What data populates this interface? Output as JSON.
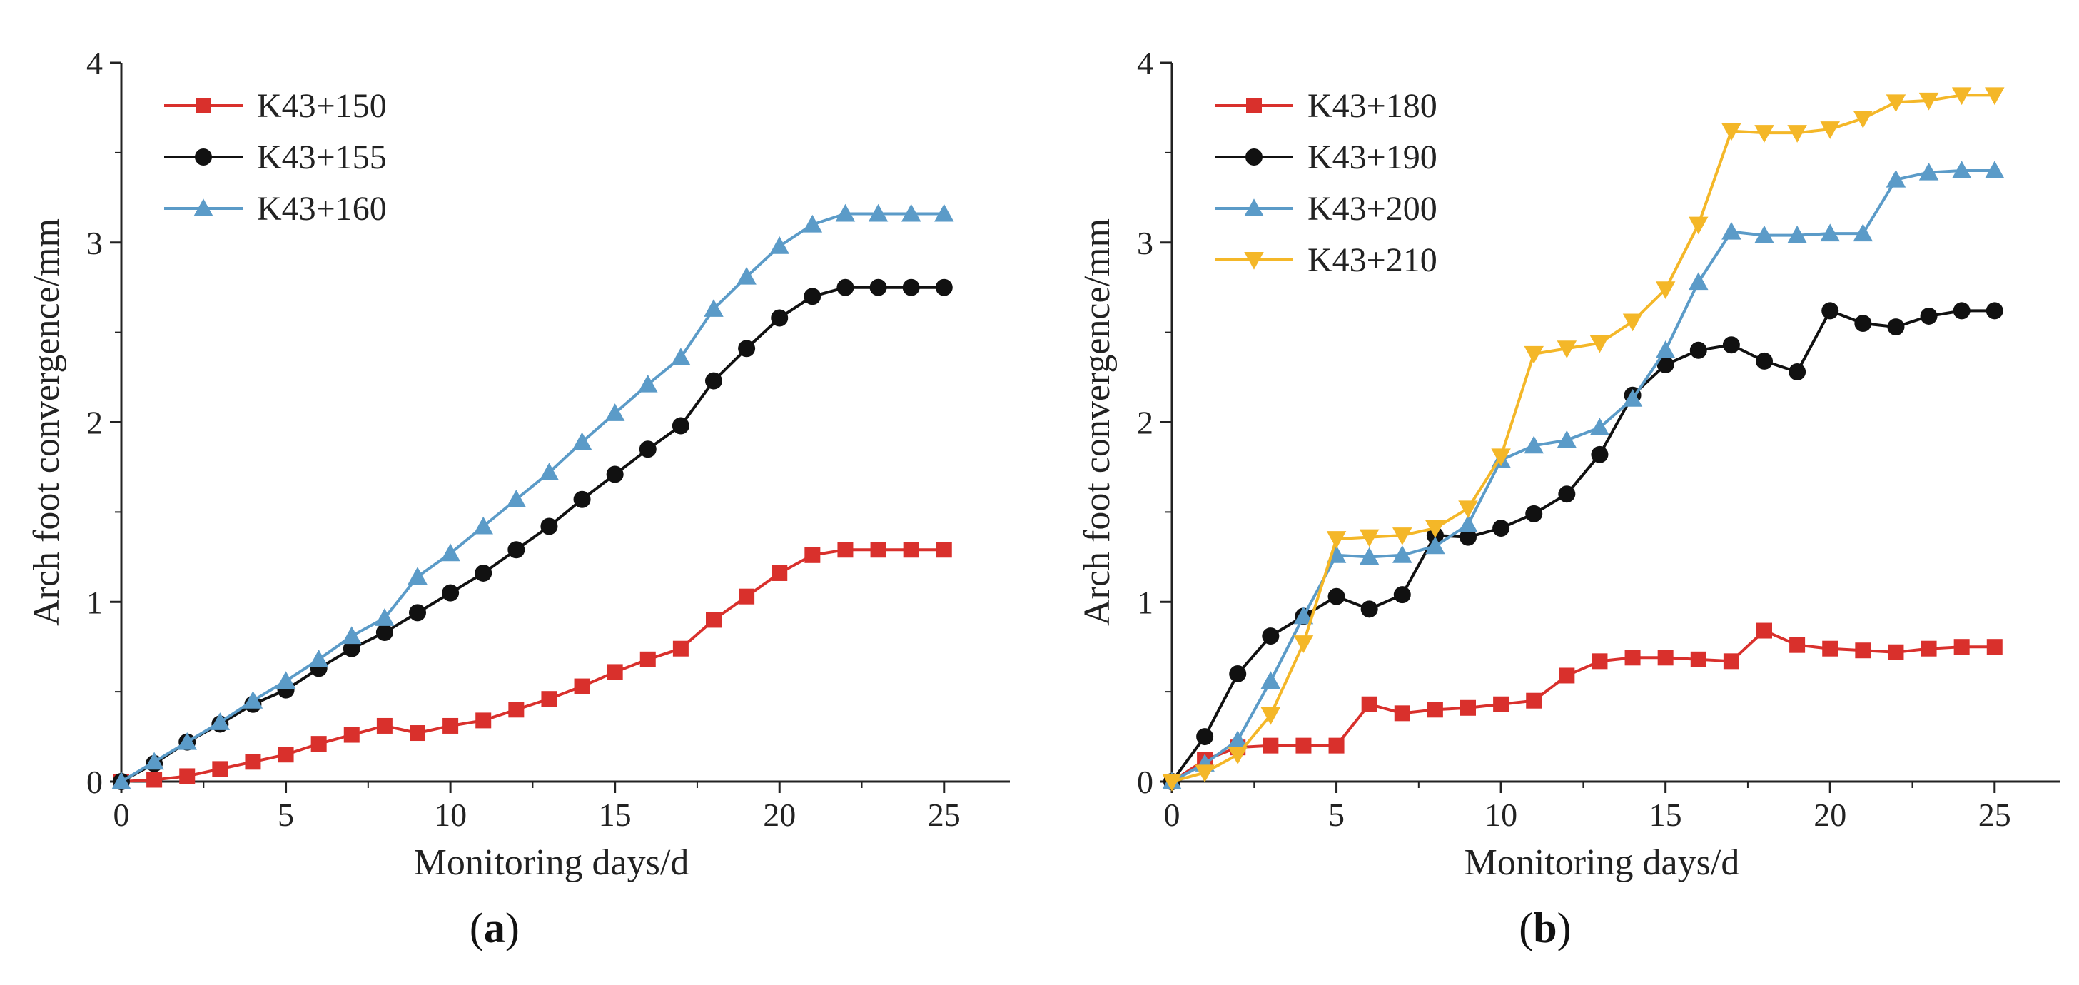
{
  "figure": {
    "panels": [
      "a",
      "b"
    ]
  },
  "chart_data": [
    {
      "type": "line",
      "panel_label": "a",
      "xlabel": "Monitoring days/d",
      "ylabel": "Arch foot convergence/mm",
      "xlim": [
        0,
        27
      ],
      "ylim": [
        0,
        4
      ],
      "xticks": [
        0,
        5,
        10,
        15,
        20,
        25
      ],
      "yticks": [
        0,
        1,
        2,
        3,
        4
      ],
      "legend_position": "top-left",
      "x": [
        0,
        1,
        2,
        3,
        4,
        5,
        6,
        7,
        8,
        9,
        10,
        11,
        12,
        13,
        14,
        15,
        16,
        17,
        18,
        19,
        20,
        21,
        22,
        23,
        24,
        25
      ],
      "series": [
        {
          "name": "K43+150",
          "color": "#d9302c",
          "marker": "square",
          "values": [
            0.0,
            0.01,
            0.03,
            0.07,
            0.11,
            0.15,
            0.21,
            0.26,
            0.31,
            0.27,
            0.31,
            0.34,
            0.4,
            0.46,
            0.53,
            0.61,
            0.68,
            0.74,
            0.9,
            1.03,
            1.16,
            1.26,
            1.29,
            1.29,
            1.29,
            1.29
          ]
        },
        {
          "name": "K43+155",
          "color": "#111111",
          "marker": "circle",
          "values": [
            0.0,
            0.1,
            0.22,
            0.32,
            0.43,
            0.51,
            0.63,
            0.74,
            0.83,
            0.94,
            1.05,
            1.16,
            1.29,
            1.42,
            1.57,
            1.71,
            1.85,
            1.98,
            2.23,
            2.41,
            2.58,
            2.7,
            2.75,
            2.75,
            2.75,
            2.75
          ]
        },
        {
          "name": "K43+160",
          "color": "#5b9bc8",
          "marker": "triangle-up",
          "values": [
            0.0,
            0.11,
            0.22,
            0.33,
            0.45,
            0.56,
            0.68,
            0.81,
            0.91,
            1.14,
            1.27,
            1.42,
            1.57,
            1.72,
            1.89,
            2.05,
            2.21,
            2.36,
            2.63,
            2.81,
            2.98,
            3.1,
            3.16,
            3.16,
            3.16,
            3.16
          ]
        }
      ]
    },
    {
      "type": "line",
      "panel_label": "b",
      "xlabel": "Monitoring days/d",
      "ylabel": "Arch foot convergence/mm",
      "xlim": [
        0,
        27
      ],
      "ylim": [
        0,
        4
      ],
      "xticks": [
        0,
        5,
        10,
        15,
        20,
        25
      ],
      "yticks": [
        0,
        1,
        2,
        3,
        4
      ],
      "legend_position": "top-left",
      "x": [
        0,
        1,
        2,
        3,
        4,
        5,
        6,
        7,
        8,
        9,
        10,
        11,
        12,
        13,
        14,
        15,
        16,
        17,
        18,
        19,
        20,
        21,
        22,
        23,
        24,
        25
      ],
      "series": [
        {
          "name": "K43+180",
          "color": "#d9302c",
          "marker": "square",
          "values": [
            0.0,
            0.12,
            0.19,
            0.2,
            0.2,
            0.2,
            0.43,
            0.38,
            0.4,
            0.41,
            0.43,
            0.45,
            0.59,
            0.67,
            0.69,
            0.69,
            0.68,
            0.67,
            0.84,
            0.76,
            0.74,
            0.73,
            0.72,
            0.74,
            0.75,
            0.75
          ]
        },
        {
          "name": "K43+190",
          "color": "#111111",
          "marker": "circle",
          "values": [
            0.0,
            0.25,
            0.6,
            0.81,
            0.92,
            1.03,
            0.96,
            1.04,
            1.37,
            1.36,
            1.41,
            1.49,
            1.6,
            1.82,
            2.15,
            2.32,
            2.4,
            2.43,
            2.34,
            2.28,
            2.62,
            2.55,
            2.53,
            2.59,
            2.62,
            2.62
          ]
        },
        {
          "name": "K43+200",
          "color": "#5b9bc8",
          "marker": "triangle-up",
          "values": [
            0.0,
            0.1,
            0.23,
            0.56,
            0.92,
            1.26,
            1.25,
            1.26,
            1.31,
            1.43,
            1.79,
            1.87,
            1.9,
            1.97,
            2.13,
            2.4,
            2.78,
            3.06,
            3.04,
            3.04,
            3.05,
            3.05,
            3.35,
            3.39,
            3.4,
            3.4
          ]
        },
        {
          "name": "K43+210",
          "color": "#f4b728",
          "marker": "triangle-down",
          "values": [
            0.0,
            0.05,
            0.15,
            0.37,
            0.77,
            1.35,
            1.36,
            1.37,
            1.41,
            1.52,
            1.81,
            2.38,
            2.41,
            2.44,
            2.56,
            2.74,
            3.1,
            3.62,
            3.61,
            3.61,
            3.63,
            3.69,
            3.78,
            3.79,
            3.82,
            3.82
          ]
        }
      ]
    }
  ]
}
